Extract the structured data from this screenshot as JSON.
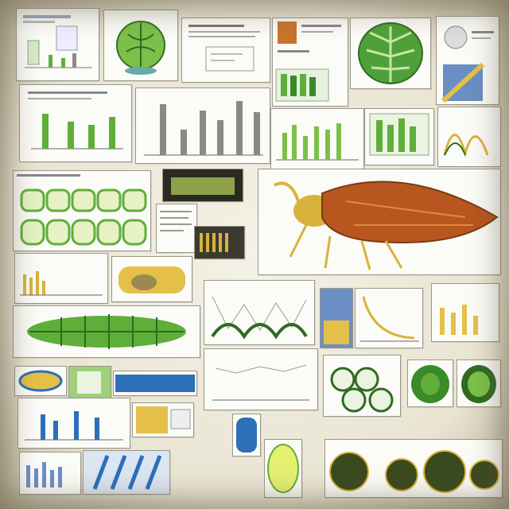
{
  "collage": {
    "description_free": true,
    "palette": {
      "paper": "#fbfbf7",
      "frame": "#9a968a",
      "leaf_green": "#5fae3a",
      "dark_green": "#2f6b23",
      "rust": "#b8561f",
      "mustard": "#d9b23c",
      "blue": "#2d6fb8",
      "grey_bar": "#8a8a80"
    },
    "tiles": [
      {
        "id": "t1",
        "kind": "bar-chart-panel",
        "icon": "chart-icon"
      },
      {
        "id": "t2",
        "kind": "specimen-illustration",
        "icon": "leaf-icon"
      },
      {
        "id": "t3",
        "kind": "text-panel",
        "icon": "document-icon"
      },
      {
        "id": "t4",
        "kind": "thumbnail-grid",
        "icon": "image-icon"
      },
      {
        "id": "t5",
        "kind": "specimen-illustration",
        "icon": "leaf-icon"
      },
      {
        "id": "t6",
        "kind": "specimen-illustration",
        "icon": "shell-icon"
      },
      {
        "id": "t7",
        "kind": "bar-chart-panel",
        "icon": "chart-icon"
      },
      {
        "id": "t8",
        "kind": "bar-chart-panel",
        "icon": "chart-icon"
      },
      {
        "id": "t9",
        "kind": "bar-chart-panel",
        "icon": "chart-icon"
      },
      {
        "id": "t10",
        "kind": "bar-chart-panel",
        "icon": "chart-icon"
      },
      {
        "id": "t11",
        "kind": "line-chart-panel",
        "icon": "chart-icon"
      },
      {
        "id": "t12",
        "kind": "cell-row-illustration",
        "icon": "cell-icon"
      },
      {
        "id": "t13",
        "kind": "photo-panel",
        "icon": "image-icon"
      },
      {
        "id": "t14",
        "kind": "text-panel",
        "icon": "document-icon"
      },
      {
        "id": "t15",
        "kind": "specimen-illustration",
        "icon": "insect-icon"
      },
      {
        "id": "t16",
        "kind": "bar-chart-panel",
        "icon": "chart-icon"
      },
      {
        "id": "t17",
        "kind": "specimen-illustration",
        "icon": "leaf-icon"
      },
      {
        "id": "t18",
        "kind": "bar-chart-panel",
        "icon": "chart-icon"
      },
      {
        "id": "t19",
        "kind": "specimen-illustration",
        "icon": "leaf-icon"
      },
      {
        "id": "t20",
        "kind": "photo-panel",
        "icon": "image-icon"
      },
      {
        "id": "t21",
        "kind": "line-chart-panel",
        "icon": "chart-icon"
      },
      {
        "id": "t22",
        "kind": "cell-row-illustration",
        "icon": "cell-icon"
      },
      {
        "id": "t23",
        "kind": "specimen-illustration",
        "icon": "cell-icon"
      },
      {
        "id": "t24",
        "kind": "photo-panel",
        "icon": "image-icon"
      },
      {
        "id": "t25",
        "kind": "bar-chart-panel",
        "icon": "chart-icon"
      },
      {
        "id": "t26",
        "kind": "specimen-illustration",
        "icon": "cell-icon"
      }
    ]
  }
}
